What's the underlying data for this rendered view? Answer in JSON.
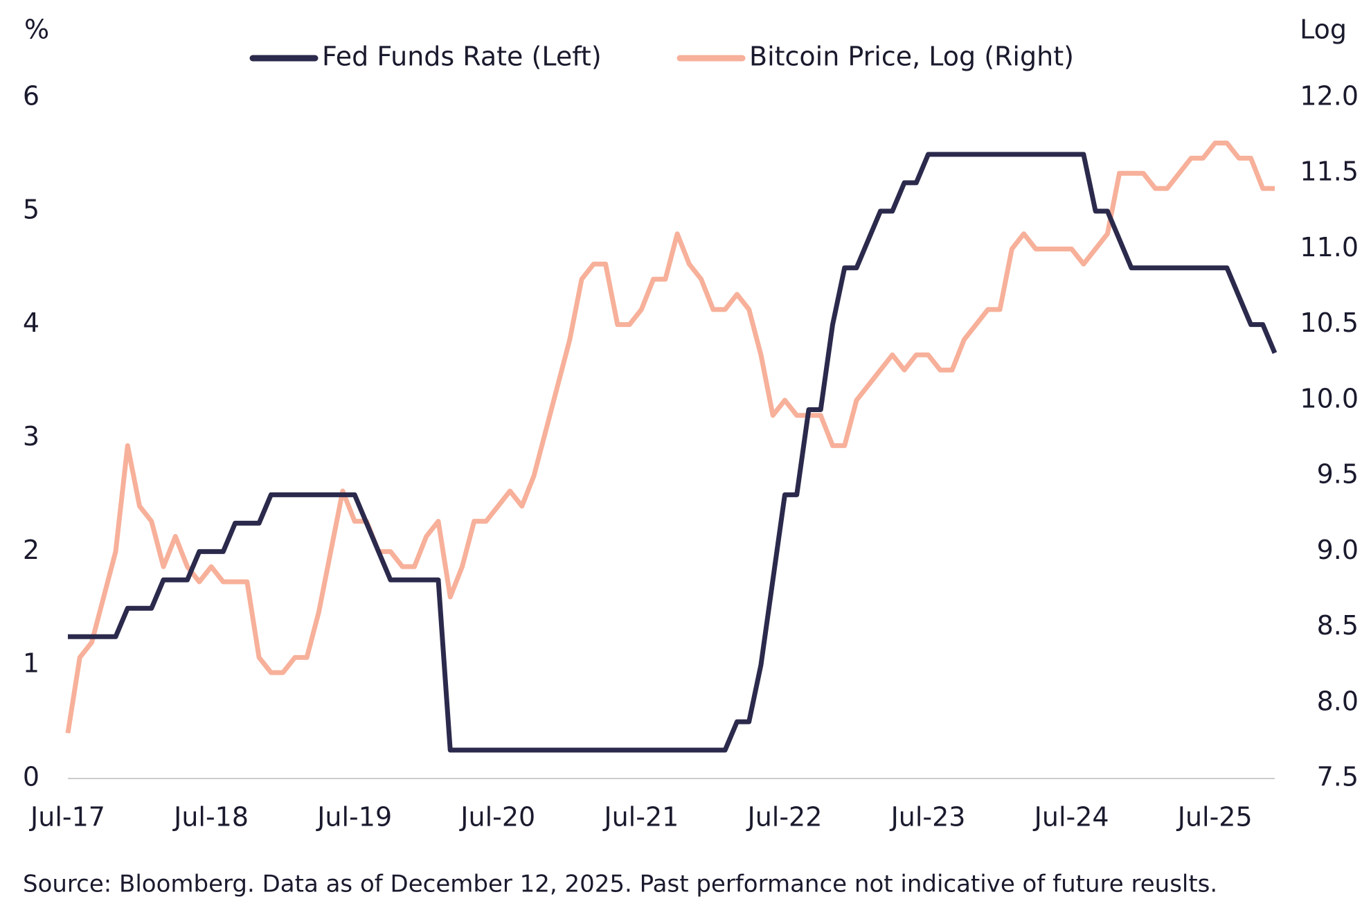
{
  "chart_data": {
    "type": "line",
    "ylabel": "%",
    "y2label": "Log",
    "note": "Source: Bloomberg. Data as of December 12, 2025. Past performance not indicative of future reuslts.",
    "x": [
      "2017-07",
      "2017-08",
      "2017-09",
      "2017-10",
      "2017-11",
      "2017-12",
      "2018-01",
      "2018-02",
      "2018-03",
      "2018-04",
      "2018-05",
      "2018-06",
      "2018-07",
      "2018-08",
      "2018-09",
      "2018-10",
      "2018-11",
      "2018-12",
      "2019-01",
      "2019-02",
      "2019-03",
      "2019-04",
      "2019-05",
      "2019-06",
      "2019-07",
      "2019-08",
      "2019-09",
      "2019-10",
      "2019-11",
      "2019-12",
      "2020-01",
      "2020-02",
      "2020-03",
      "2020-04",
      "2020-05",
      "2020-06",
      "2020-07",
      "2020-08",
      "2020-09",
      "2020-10",
      "2020-11",
      "2020-12",
      "2021-01",
      "2021-02",
      "2021-03",
      "2021-04",
      "2021-05",
      "2021-06",
      "2021-07",
      "2021-08",
      "2021-09",
      "2021-10",
      "2021-11",
      "2021-12",
      "2022-01",
      "2022-02",
      "2022-03",
      "2022-04",
      "2022-05",
      "2022-06",
      "2022-07",
      "2022-08",
      "2022-09",
      "2022-10",
      "2022-11",
      "2022-12",
      "2023-01",
      "2023-02",
      "2023-03",
      "2023-04",
      "2023-05",
      "2023-06",
      "2023-07",
      "2023-08",
      "2023-09",
      "2023-10",
      "2023-11",
      "2023-12",
      "2024-01",
      "2024-02",
      "2024-03",
      "2024-04",
      "2024-05",
      "2024-06",
      "2024-07",
      "2024-08",
      "2024-09",
      "2024-10",
      "2024-11",
      "2024-12",
      "2025-01",
      "2025-02",
      "2025-03",
      "2025-04",
      "2025-05",
      "2025-06",
      "2025-07",
      "2025-08",
      "2025-09",
      "2025-10",
      "2025-11",
      "2025-12"
    ],
    "xlim": [
      "2017-07",
      "2025-12"
    ],
    "xticks": [
      {
        "value": "2017-07",
        "label": "Jul-17"
      },
      {
        "value": "2018-07",
        "label": "Jul-18"
      },
      {
        "value": "2019-07",
        "label": "Jul-19"
      },
      {
        "value": "2020-07",
        "label": "Jul-20"
      },
      {
        "value": "2021-07",
        "label": "Jul-21"
      },
      {
        "value": "2022-07",
        "label": "Jul-22"
      },
      {
        "value": "2023-07",
        "label": "Jul-23"
      },
      {
        "value": "2024-07",
        "label": "Jul-24"
      },
      {
        "value": "2025-07",
        "label": "Jul-25"
      }
    ],
    "ylim": [
      0,
      6
    ],
    "yticks": [
      0,
      1,
      2,
      3,
      4,
      5,
      6
    ],
    "y2lim": [
      7.5,
      12
    ],
    "y2ticks": [
      {
        "value": 7.5,
        "label": "7.5"
      },
      {
        "value": 8,
        "label": "8.0"
      },
      {
        "value": 8.5,
        "label": "8.5"
      },
      {
        "value": 9,
        "label": "9.0"
      },
      {
        "value": 9.5,
        "label": "9.5"
      },
      {
        "value": 10,
        "label": "10.0"
      },
      {
        "value": 10.5,
        "label": "10.5"
      },
      {
        "value": 11,
        "label": "11.0"
      },
      {
        "value": 11.5,
        "label": "11.5"
      },
      {
        "value": 12,
        "label": "12.0"
      }
    ],
    "grid": false,
    "series": [
      {
        "name": "Fed Funds Rate (Left)",
        "color": "#2b2a4c",
        "values": [
          1.25,
          1.25,
          1.25,
          1.25,
          1.25,
          1.5,
          1.5,
          1.5,
          1.75,
          1.75,
          1.75,
          2.0,
          2.0,
          2.0,
          2.25,
          2.25,
          2.25,
          2.5,
          2.5,
          2.5,
          2.5,
          2.5,
          2.5,
          2.5,
          2.5,
          2.25,
          2.0,
          1.75,
          1.75,
          1.75,
          1.75,
          1.75,
          0.25,
          0.25,
          0.25,
          0.25,
          0.25,
          0.25,
          0.25,
          0.25,
          0.25,
          0.25,
          0.25,
          0.25,
          0.25,
          0.25,
          0.25,
          0.25,
          0.25,
          0.25,
          0.25,
          0.25,
          0.25,
          0.25,
          0.25,
          0.25,
          0.5,
          0.5,
          1.0,
          1.75,
          2.5,
          2.5,
          3.25,
          3.25,
          4.0,
          4.5,
          4.5,
          4.75,
          5.0,
          5.0,
          5.25,
          5.25,
          5.5,
          5.5,
          5.5,
          5.5,
          5.5,
          5.5,
          5.5,
          5.5,
          5.5,
          5.5,
          5.5,
          5.5,
          5.5,
          5.5,
          5.0,
          5.0,
          4.75,
          4.5,
          4.5,
          4.5,
          4.5,
          4.5,
          4.5,
          4.5,
          4.5,
          4.5,
          4.25,
          4.0,
          4.0,
          3.75
        ]
      },
      {
        "name": "Bitcoin Price, Log (Right)",
        "color": "#f7b09a",
        "axis": "y2",
        "values": [
          7.8,
          8.3,
          8.4,
          8.7,
          9.0,
          9.7,
          9.3,
          9.2,
          8.9,
          9.1,
          8.9,
          8.8,
          8.9,
          8.8,
          8.8,
          8.8,
          8.3,
          8.2,
          8.2,
          8.3,
          8.3,
          8.6,
          9.0,
          9.4,
          9.2,
          9.2,
          9.0,
          9.0,
          8.9,
          8.9,
          9.1,
          9.2,
          8.7,
          8.9,
          9.2,
          9.2,
          9.3,
          9.4,
          9.3,
          9.5,
          9.8,
          10.1,
          10.4,
          10.8,
          10.9,
          10.9,
          10.5,
          10.5,
          10.6,
          10.8,
          10.8,
          11.1,
          10.9,
          10.8,
          10.6,
          10.6,
          10.7,
          10.6,
          10.3,
          9.9,
          10.0,
          9.9,
          9.9,
          9.9,
          9.7,
          9.7,
          10.0,
          10.1,
          10.2,
          10.3,
          10.2,
          10.3,
          10.3,
          10.2,
          10.2,
          10.4,
          10.5,
          10.6,
          10.6,
          11.0,
          11.1,
          11.0,
          11.0,
          11.0,
          11.0,
          10.9,
          11.0,
          11.1,
          11.5,
          11.5,
          11.5,
          11.4,
          11.4,
          11.5,
          11.6,
          11.6,
          11.7,
          11.7,
          11.6,
          11.6,
          11.4,
          11.4
        ]
      }
    ]
  }
}
